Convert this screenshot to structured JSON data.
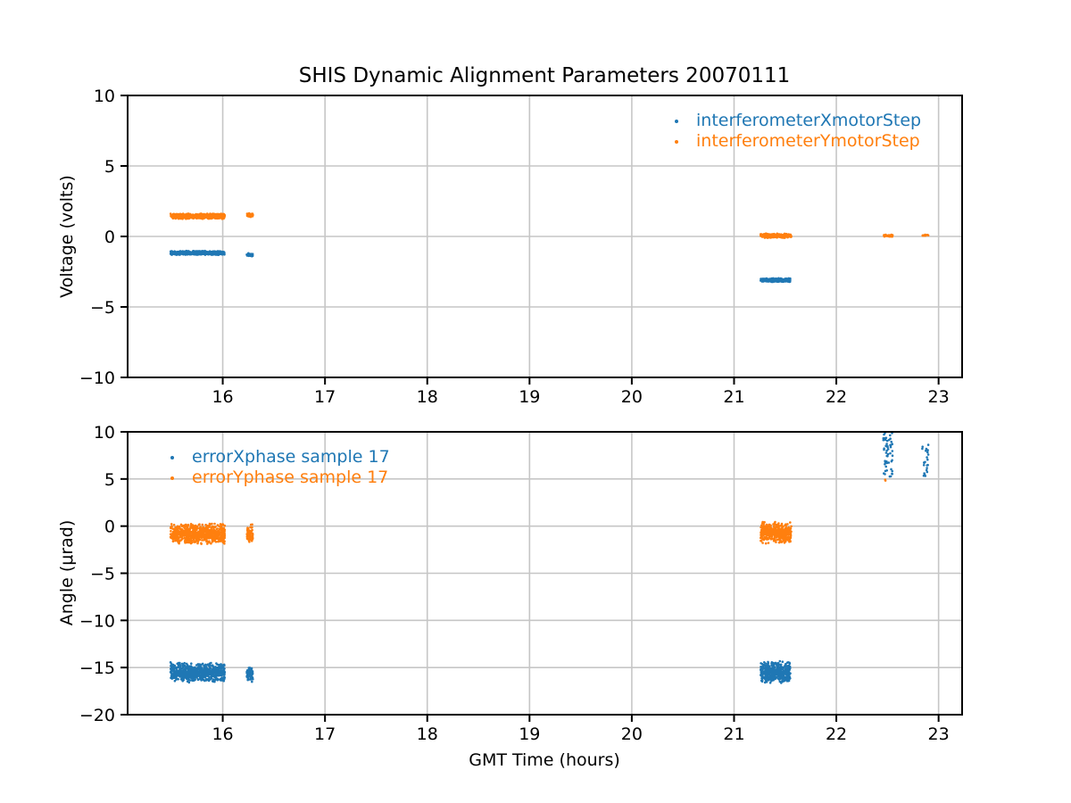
{
  "figure": {
    "background": "#ffffff",
    "accent_blue": "#1f77b4",
    "accent_orange": "#ff7f0e",
    "grid_color": "#c6c6c6"
  },
  "chart_data": [
    {
      "type": "scatter",
      "title": "SHIS Dynamic Alignment Parameters 20070111",
      "ylabel": "Voltage (volts)",
      "ylim": [
        -10,
        10
      ],
      "yticks": [
        10,
        5,
        0,
        -5,
        -10
      ],
      "ytick_labels": [
        "10",
        "5",
        "0",
        "−5",
        "−10"
      ],
      "xlim": [
        15.07,
        23.23
      ],
      "xticks": [
        16,
        17,
        18,
        19,
        20,
        21,
        22,
        23
      ],
      "xtick_labels": [
        "16",
        "17",
        "18",
        "19",
        "20",
        "21",
        "22",
        "23"
      ],
      "grid": true,
      "legend": {
        "position": "upper right",
        "frame": false
      },
      "series": [
        {
          "name": "interferometerXmotorStep",
          "color": "#1f77b4",
          "marker": "dot",
          "clusters": [
            {
              "x0": 15.49,
              "x1": 16.02,
              "y": -1.17,
              "dy": 0.15,
              "n": 600
            },
            {
              "x0": 16.235,
              "x1": 16.295,
              "y": -1.3,
              "dy": 0.13,
              "n": 40
            },
            {
              "x0": 21.26,
              "x1": 21.55,
              "y": -3.1,
              "dy": 0.14,
              "n": 350
            }
          ]
        },
        {
          "name": "interferometerYmotorStep",
          "color": "#ff7f0e",
          "marker": "dot",
          "clusters": [
            {
              "x0": 15.49,
              "x1": 16.02,
              "y": 1.43,
              "dy": 0.2,
              "n": 650
            },
            {
              "x0": 16.235,
              "x1": 16.295,
              "y": 1.52,
              "dy": 0.16,
              "n": 40
            },
            {
              "x0": 21.26,
              "x1": 21.56,
              "y": 0.05,
              "dy": 0.16,
              "n": 350
            },
            {
              "x0": 22.455,
              "x1": 22.555,
              "y": 0.05,
              "dy": 0.08,
              "n": 50
            },
            {
              "x0": 22.84,
              "x1": 22.9,
              "y": 0.08,
              "dy": 0.06,
              "n": 16
            }
          ]
        }
      ]
    },
    {
      "type": "scatter",
      "xlabel": "GMT Time (hours)",
      "ylabel": "Angle (μrad)",
      "ylim": [
        -20,
        10
      ],
      "yticks": [
        10,
        5,
        0,
        -5,
        -10,
        -15,
        -20
      ],
      "ytick_labels": [
        "10",
        "5",
        "0",
        "−5",
        "−10",
        "−15",
        "−20"
      ],
      "xlim": [
        15.07,
        23.23
      ],
      "xticks": [
        16,
        17,
        18,
        19,
        20,
        21,
        22,
        23
      ],
      "xtick_labels": [
        "16",
        "17",
        "18",
        "19",
        "20",
        "21",
        "22",
        "23"
      ],
      "grid": true,
      "legend": {
        "position": "upper left",
        "frame": false
      },
      "series": [
        {
          "name": "errorXphase sample 17",
          "color": "#1f77b4",
          "marker": "dot",
          "clusters": [
            {
              "x0": 15.49,
              "x1": 16.02,
              "y": -15.5,
              "dy": 1.1,
              "n": 700
            },
            {
              "x0": 16.235,
              "x1": 16.295,
              "y": -15.65,
              "dy": 0.95,
              "n": 60
            },
            {
              "x0": 21.26,
              "x1": 21.55,
              "y": -15.5,
              "dy": 1.25,
              "n": 450
            },
            {
              "x0": 22.46,
              "x1": 22.55,
              "y": 7.6,
              "dy": 2.4,
              "n": 55,
              "dist": "uniform"
            },
            {
              "x0": 22.84,
              "x1": 22.9,
              "y": 7.0,
              "dy": 1.7,
              "n": 24,
              "dist": "uniform"
            }
          ]
        },
        {
          "name": "errorYphase sample 17",
          "color": "#ff7f0e",
          "marker": "dot",
          "clusters": [
            {
              "x0": 15.49,
              "x1": 16.02,
              "y": -0.8,
              "dy": 1.15,
              "n": 700
            },
            {
              "x0": 16.235,
              "x1": 16.295,
              "y": -0.85,
              "dy": 1.05,
              "n": 60
            },
            {
              "x0": 21.26,
              "x1": 21.56,
              "y": -0.7,
              "dy": 1.2,
              "n": 450
            },
            {
              "x0": 22.465,
              "x1": 22.48,
              "y": 4.9,
              "dy": 0.15,
              "n": 2
            }
          ]
        }
      ]
    }
  ]
}
